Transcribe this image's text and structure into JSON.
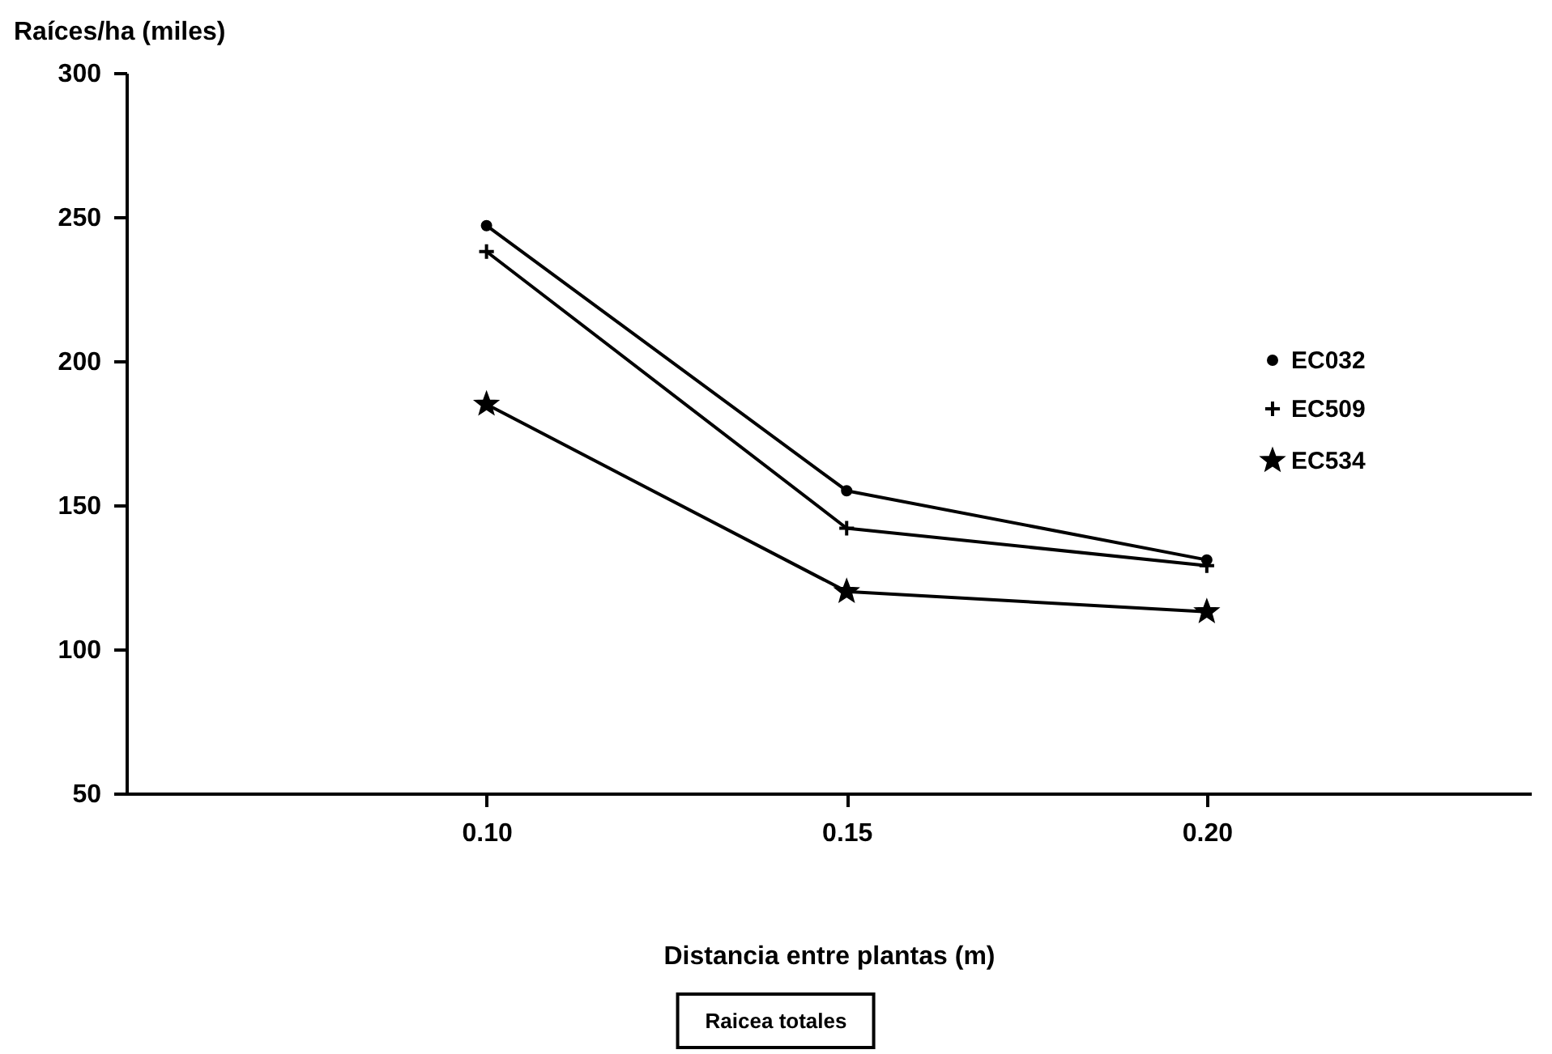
{
  "chart_data": {
    "type": "line",
    "xlabel": "Distancia entre plantas (m)",
    "ylabel": "Raíces/ha (miles)",
    "x": [
      0.1,
      0.15,
      0.2
    ],
    "xlim": [
      0.05,
      0.245
    ],
    "xticks": [
      {
        "value": 0.1,
        "label": "0.10"
      },
      {
        "value": 0.15,
        "label": "0.15"
      },
      {
        "value": 0.2,
        "label": "0.20"
      }
    ],
    "ylim": [
      50,
      300
    ],
    "yticks": [
      50,
      100,
      150,
      200,
      250,
      300
    ],
    "series": [
      {
        "name": "EC032",
        "color": "#000000",
        "marker": "circle",
        "values": [
          247,
          155,
          131
        ]
      },
      {
        "name": "EC509",
        "color": "#000000",
        "marker": "cross",
        "values": [
          238,
          142,
          129
        ]
      },
      {
        "name": "EC534",
        "color": "#000000",
        "marker": "star",
        "values": [
          185,
          120,
          113
        ]
      }
    ],
    "legend": "right",
    "grid": false,
    "line_style": "solid",
    "annotations": [
      "Raicea totales"
    ]
  }
}
